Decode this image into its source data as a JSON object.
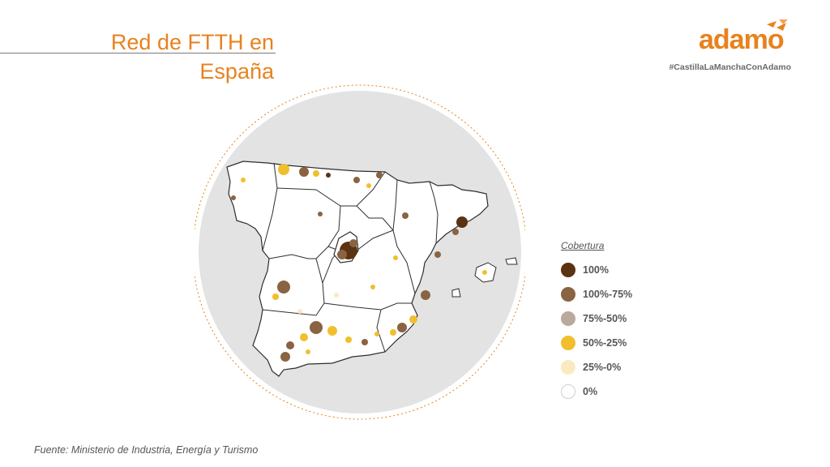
{
  "slide": {
    "title_line1": "Red de FTTH en",
    "title_line2": "España",
    "brand_name": "adamo",
    "hashtag": "#CastillaLaManchaConAdamo",
    "source": "Fuente: Ministerio de Industria, Energía y Turismo"
  },
  "legend": {
    "title": "Cobertura",
    "items": [
      {
        "label": "100%",
        "color": "#5b3212"
      },
      {
        "label": "100%-75%",
        "color": "#8a6343"
      },
      {
        "label": "75%-50%",
        "color": "#b9aa9b"
      },
      {
        "label": "50%-25%",
        "color": "#f0bf2c"
      },
      {
        "label": "25%-0%",
        "color": "#fbe9c2"
      },
      {
        "label": "0%",
        "color": "#ffffff"
      }
    ]
  },
  "colors": {
    "accent": "#e8821e",
    "map_background": "#e3e3e3",
    "border": "#2e2e2e"
  },
  "icons": {
    "logo": "adamo-bird-logo-icon"
  }
}
